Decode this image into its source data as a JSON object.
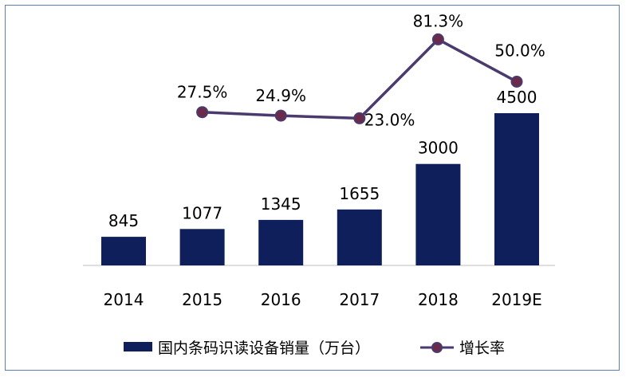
{
  "chart_data": {
    "type": "bar",
    "categories": [
      "2014",
      "2015",
      "2016",
      "2017",
      "2018",
      "2019E"
    ],
    "series": [
      {
        "name": "国内条码识读设备销量（万台）",
        "type": "bar",
        "values": [
          845,
          1077,
          1345,
          1655,
          3000,
          4500
        ],
        "labels": [
          "845",
          "1077",
          "1345",
          "1655",
          "3000",
          "4500"
        ],
        "color": "#0f1f5c"
      },
      {
        "name": "增长率",
        "type": "line",
        "values": [
          null,
          27.5,
          24.9,
          23.0,
          81.3,
          50.0
        ],
        "labels": [
          "",
          "27.5%",
          "24.9%",
          "23.0%",
          "81.3%",
          "50.0%"
        ],
        "color": "#4a3a6e",
        "marker_fill": "#6b2a4a"
      }
    ],
    "title": "",
    "xlabel": "",
    "ylabel": "",
    "legend_position": "bottom",
    "grid": false
  }
}
